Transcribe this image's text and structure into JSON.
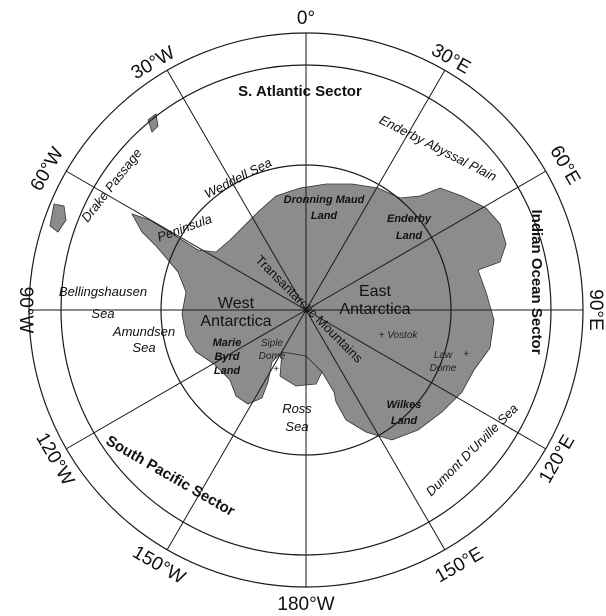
{
  "degrees": {
    "d0": "0°",
    "d30e": "30°E",
    "d60e": "60°E",
    "d90e": "90°E",
    "d120e": "120°E",
    "d150e": "150°E",
    "d180w": "180°W",
    "d150w": "150°W",
    "d120w": "120°W",
    "d90w": "90°W",
    "d60w": "60°W",
    "d30w": "30°W"
  },
  "sectors": {
    "atlantic": "S. Atlantic Sector",
    "indian": "Indian Ocean Sector",
    "pacific": "South Pacific Sector"
  },
  "seas": {
    "enderby_plain": "Enderby Abyssal Plain",
    "drake": "Drake Passage",
    "weddell": "Weddell Sea",
    "bellingshausen_1": "Bellingshausen",
    "bellingshausen_2": "Sea",
    "amundsen_1": "Amundsen",
    "amundsen_2": "Sea",
    "ross_1": "Ross",
    "ross_2": "Sea",
    "dumont": "Dumont D'Urville Sea"
  },
  "regions": {
    "west_1": "West",
    "west_2": "Antarctica",
    "east_1": "East",
    "east_2": "Antarctica",
    "mountains": "Transantarctic Mountains",
    "peninsula": "Peninsula"
  },
  "lands": {
    "dronning_1": "Dronning Maud",
    "dronning_2": "Land",
    "enderby_1": "Enderby",
    "enderby_2": "Land",
    "marie_1": "Marie",
    "marie_2": "Byrd",
    "marie_3": "Land",
    "wilkes_1": "Wilkes",
    "wilkes_2": "Land"
  },
  "features": {
    "vostok": "+ Vostok",
    "siple_1": "Siple",
    "siple_2": "Dome",
    "law_1": "Law",
    "law_2": "Dome"
  },
  "colors": {
    "land": "#8c8c8c",
    "lines": "#1a1a1a"
  }
}
